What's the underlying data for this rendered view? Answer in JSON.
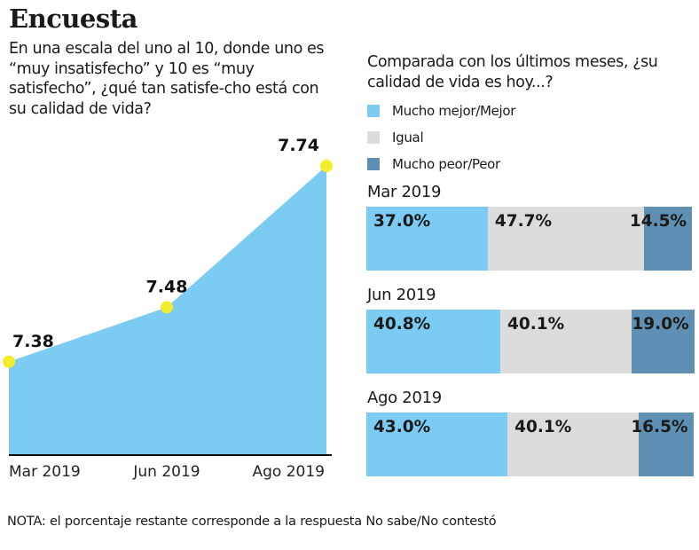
{
  "title": "Encuesta",
  "colors": {
    "mejor": "#7ccbf2",
    "igual": "#dcdcdc",
    "peor": "#5f90b3",
    "dot": "#f2ec2a",
    "area": "#7ccbf2"
  },
  "chart_data": [
    {
      "type": "area",
      "title": "En una escala del uno al 10, donde uno es “muy insatisfecho” y 10 es “muy satisfecho”, ¿qué tan satisfe-cho está con su calidad de vida?",
      "categories": [
        "Mar 2019",
        "Jun 2019",
        "Ago 2019"
      ],
      "values": [
        7.38,
        7.48,
        7.74
      ],
      "labels": [
        "7.38",
        "7.48",
        "7.74"
      ],
      "grid": false
    },
    {
      "type": "bar",
      "orientation": "horizontal",
      "stacked": true,
      "title": "Comparada con los últimos meses, ¿su calidad de vida es hoy...?",
      "categories": [
        "Mar 2019",
        "Jun 2019",
        "Ago 2019"
      ],
      "series": [
        {
          "name": "Mucho mejor/Mejor",
          "values": [
            37.0,
            40.8,
            43.0
          ],
          "labels": [
            "37.0%",
            "40.8%",
            "43.0%"
          ]
        },
        {
          "name": "Igual",
          "values": [
            47.7,
            40.1,
            40.1
          ],
          "labels": [
            "47.7%",
            "40.1%",
            "40.1%"
          ]
        },
        {
          "name": "Mucho peor/Peor",
          "values": [
            14.5,
            19.0,
            16.5
          ],
          "labels": [
            "14.5%",
            "19.0%",
            "16.5%"
          ]
        }
      ],
      "legend": "top"
    }
  ],
  "note": "NOTA: el porcentaje restante corresponde a la respuesta No sabe/No contestó"
}
